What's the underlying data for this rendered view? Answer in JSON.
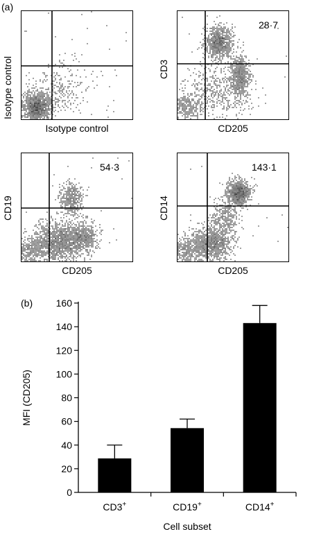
{
  "panel_a": {
    "label": "(a)",
    "plots": [
      {
        "id": "isotype",
        "ylabel": "Isotype control",
        "xlabel": "Isotype control",
        "value": ""
      },
      {
        "id": "cd3",
        "ylabel": "CD3",
        "xlabel": "CD205",
        "value": "28·7"
      },
      {
        "id": "cd19",
        "ylabel": "CD19",
        "xlabel": "CD205",
        "value": "54·3"
      },
      {
        "id": "cd14",
        "ylabel": "CD14",
        "xlabel": "CD205",
        "value": "143·1"
      }
    ]
  },
  "panel_b": {
    "label": "(b)"
  },
  "chart_data": {
    "type": "bar",
    "categories": [
      "CD3",
      "CD19",
      "CD14"
    ],
    "category_superscript": "+",
    "values": [
      28.7,
      54.3,
      143.1
    ],
    "error_upper": [
      40,
      62,
      158
    ],
    "xlabel": "Cell subset",
    "ylabel": "MFI (CD205)",
    "ylim": [
      0,
      160
    ],
    "yticks": [
      0,
      20,
      40,
      60,
      80,
      100,
      120,
      140,
      160
    ],
    "grid": false,
    "bar_color": "#000000"
  }
}
